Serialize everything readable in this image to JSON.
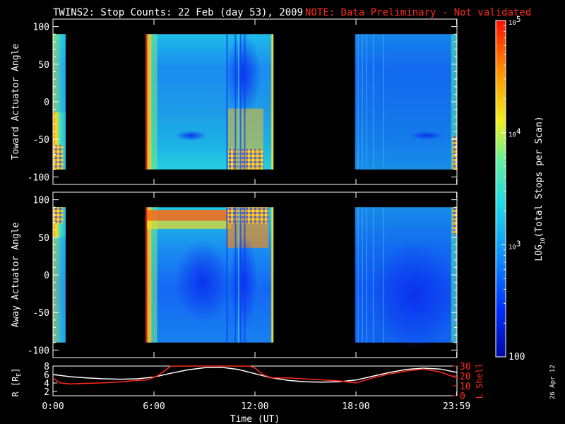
{
  "title": {
    "main": "TWINS2: Stop Counts: 22 Feb (day  53), 2009",
    "note": "NOTE: Data Preliminary - Not validated",
    "note_color": "#ff2a1a"
  },
  "stamp": "26 Apr 12",
  "chart_data": [
    {
      "type": "heatmap",
      "panel": "toward",
      "ylabel": "Toward Actuator Angle",
      "ylim": [
        -110,
        110
      ],
      "yticks": [
        100,
        50,
        0,
        -50,
        -100
      ],
      "angle_range": [
        -90,
        90
      ],
      "xlim_hours": [
        0,
        24
      ],
      "data_segments_hours": [
        [
          0,
          0.75
        ],
        [
          5.5,
          13.1
        ],
        [
          17.95,
          23.99
        ]
      ]
    },
    {
      "type": "heatmap",
      "panel": "away",
      "ylabel": "Away Actuator Angle",
      "ylim": [
        -110,
        110
      ],
      "yticks": [
        100,
        50,
        0,
        -50,
        -100
      ],
      "angle_range": [
        -90,
        90
      ],
      "xlim_hours": [
        0,
        24
      ],
      "data_segments_hours": [
        [
          0,
          0.75
        ],
        [
          5.5,
          13.1
        ],
        [
          17.95,
          23.99
        ]
      ]
    },
    {
      "type": "line",
      "panel": "orbit",
      "ylabel_left": "R [R",
      "ylabel_left_sub": "E",
      "ylabel_left_end": "]",
      "ylabel_right": "L Shell",
      "ylim_left": [
        1,
        8
      ],
      "yticks_left": [
        8,
        6,
        4,
        2
      ],
      "ylim_right": [
        0,
        30
      ],
      "yticks_right": [
        30,
        20,
        10,
        0
      ],
      "xlabel": "Time (UT)",
      "xticks": [
        {
          "h": 0,
          "label": "0:00"
        },
        {
          "h": 6,
          "label": "6:00"
        },
        {
          "h": 12,
          "label": "12:00"
        },
        {
          "h": 18,
          "label": "18:00"
        },
        {
          "h": 23.983,
          "label": "23:59"
        }
      ],
      "series": [
        {
          "name": "R",
          "color": "#ffffff",
          "x": [
            0,
            1,
            2,
            3,
            4,
            5,
            6,
            7,
            8,
            9,
            10,
            11,
            12,
            13,
            14,
            15,
            16,
            17,
            18,
            19,
            20,
            21,
            22,
            23,
            24
          ],
          "values": [
            6.0,
            5.5,
            5.2,
            5.0,
            4.9,
            5.0,
            5.4,
            6.3,
            7.1,
            7.6,
            7.7,
            7.2,
            6.2,
            5.2,
            4.6,
            4.3,
            4.2,
            4.3,
            4.7,
            5.6,
            6.5,
            7.2,
            7.5,
            7.3,
            6.5
          ]
        },
        {
          "name": "L Shell",
          "color": "#ff2a1a",
          "axis": "right",
          "x": [
            0,
            0.4,
            1,
            2,
            3,
            4,
            5,
            5.6,
            6.2,
            6.7,
            7.0,
            11.7,
            12.0,
            12.5,
            13.0,
            14,
            15,
            16,
            17,
            18,
            19,
            20,
            21,
            22,
            23,
            24
          ],
          "values": [
            18,
            13,
            12,
            12.5,
            13,
            14,
            15.5,
            16,
            20,
            26,
            31,
            31,
            28,
            21,
            18,
            18,
            17,
            16,
            15,
            13,
            18,
            22,
            25,
            27,
            24,
            18
          ]
        }
      ]
    },
    {
      "type": "colorbar",
      "label_log": "LOG",
      "label_log_sub": "10",
      "label_rest": "(Total Stops per Scan)",
      "scale": "log",
      "range": [
        100,
        100000
      ],
      "ticks": [
        {
          "value": 100000,
          "base": "10",
          "exp": "5"
        },
        {
          "value": 10000,
          "base": "10",
          "exp": "4"
        },
        {
          "value": 1000,
          "base": "10",
          "exp": "3"
        },
        {
          "value": 100,
          "text": "100"
        }
      ],
      "colors": [
        "#0008a0",
        "#0030ff",
        "#1090ff",
        "#20d8e8",
        "#60f0a0",
        "#f0f020",
        "#ff9000",
        "#ff1000"
      ]
    }
  ]
}
